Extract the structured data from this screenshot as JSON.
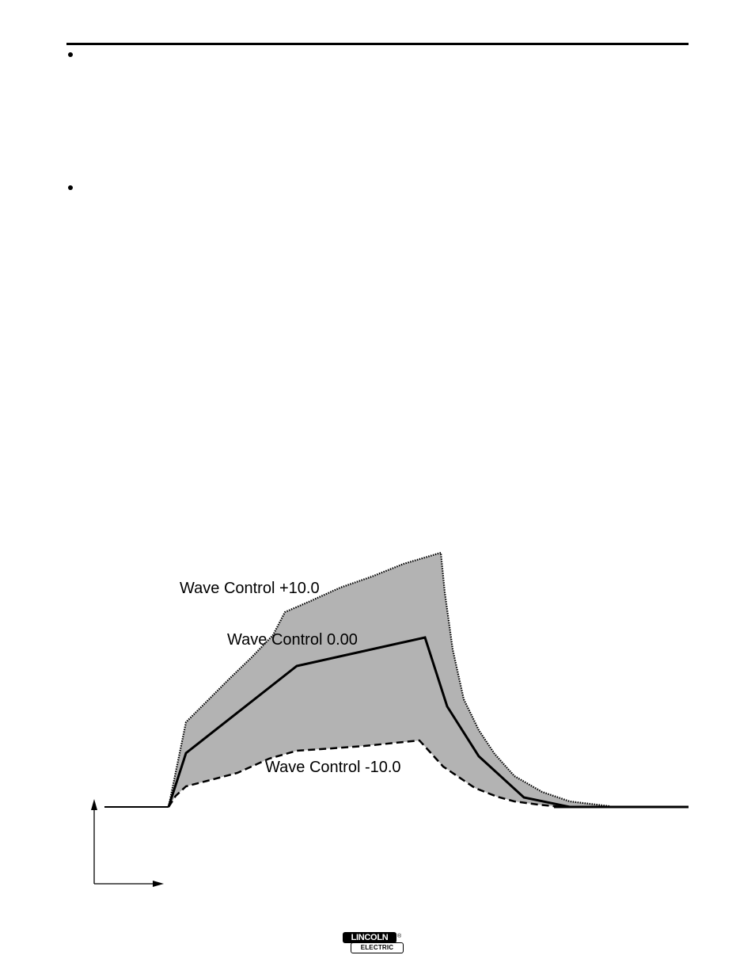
{
  "figure": {
    "labels": {
      "plus": "Wave Control +10.0",
      "zero": "Wave Control 0.00",
      "minus": "Wave Control -10.0"
    }
  },
  "logo": {
    "top_text": "LINCOLN",
    "registered_mark": "®",
    "bottom_text": "ELECTRIC"
  }
}
